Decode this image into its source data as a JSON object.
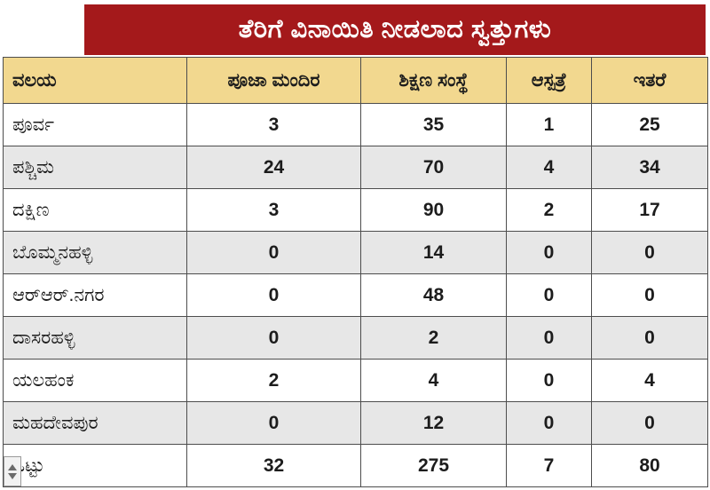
{
  "title": "ತೆರಿಗೆ ವಿನಾಯಿತಿ ನೀಡಲಾದ ಸ್ವತ್ತುಗಳು",
  "colors": {
    "title_bar_bg": "#a4191b",
    "title_text": "#ffffff",
    "header_bg": "#f2d88f",
    "row_alt_bg": "#e7e7e7",
    "border": "#4d4d4d",
    "text": "#1c1c1c"
  },
  "icons": {
    "bottom_left": "scroll-indicator-icon"
  },
  "table": {
    "headers": [
      "ವಲಯ",
      "ಪೂಜಾ ಮಂದಿರ",
      "ಶಿಕ್ಷಣ ಸಂಸ್ಥೆ",
      "ಆಸ್ಪತ್ರೆ",
      "ಇತರೆ"
    ],
    "rows": [
      {
        "zone": "ಪೂರ್ವ",
        "values": [
          "3",
          "35",
          "1",
          "25"
        ]
      },
      {
        "zone": "ಪಶ್ಚಿಮ",
        "values": [
          "24",
          "70",
          "4",
          "34"
        ]
      },
      {
        "zone": "ದಕ್ಷಿಣ",
        "values": [
          "3",
          "90",
          "2",
          "17"
        ]
      },
      {
        "zone": "ಬೊಮ್ಮನಹಳ್ಳಿ",
        "values": [
          "0",
          "14",
          "0",
          "0"
        ]
      },
      {
        "zone": "ಆರ್‌ಆರ್.ನಗರ",
        "values": [
          "0",
          "48",
          "0",
          "0"
        ]
      },
      {
        "zone": "ದಾಸರಹಳ್ಳಿ",
        "values": [
          "0",
          "2",
          "0",
          "0"
        ]
      },
      {
        "zone": "ಯಲಹಂಕ",
        "values": [
          "2",
          "4",
          "0",
          "4"
        ]
      },
      {
        "zone": "ಮಹದೇವಪುರ",
        "values": [
          "0",
          "12",
          "0",
          "0"
        ]
      },
      {
        "zone": "ಒಟ್ಟು",
        "values": [
          "32",
          "275",
          "7",
          "80"
        ]
      }
    ]
  },
  "chart_data": {
    "type": "table",
    "title": "ತೆರಿಗೆ ವಿನಾಯಿತಿ ನೀಡಲಾದ ಸ್ವತ್ತುಗಳು",
    "columns": [
      "ವಲಯ",
      "ಪೂಜಾ ಮಂದಿರ",
      "ಶಿಕ್ಷಣ ಸಂಸ್ಥೆ",
      "ಆಸ್ಪತ್ರೆ",
      "ಇತರೆ"
    ],
    "rows": [
      [
        "ಪೂರ್ವ",
        3,
        35,
        1,
        25
      ],
      [
        "ಪಶ್ಚಿಮ",
        24,
        70,
        4,
        34
      ],
      [
        "ದಕ್ಷಿಣ",
        3,
        90,
        2,
        17
      ],
      [
        "ಬೊಮ್ಮನಹಳ್ಳಿ",
        0,
        14,
        0,
        0
      ],
      [
        "ಆರ್‌ಆರ್.ನಗರ",
        0,
        48,
        0,
        0
      ],
      [
        "ದಾಸರಹಳ್ಳಿ",
        0,
        2,
        0,
        0
      ],
      [
        "ಯಲಹಂಕ",
        2,
        4,
        0,
        4
      ],
      [
        "ಮಹದೇವಪುರ",
        0,
        12,
        0,
        0
      ],
      [
        "ಒಟ್ಟು",
        32,
        275,
        7,
        80
      ]
    ]
  }
}
